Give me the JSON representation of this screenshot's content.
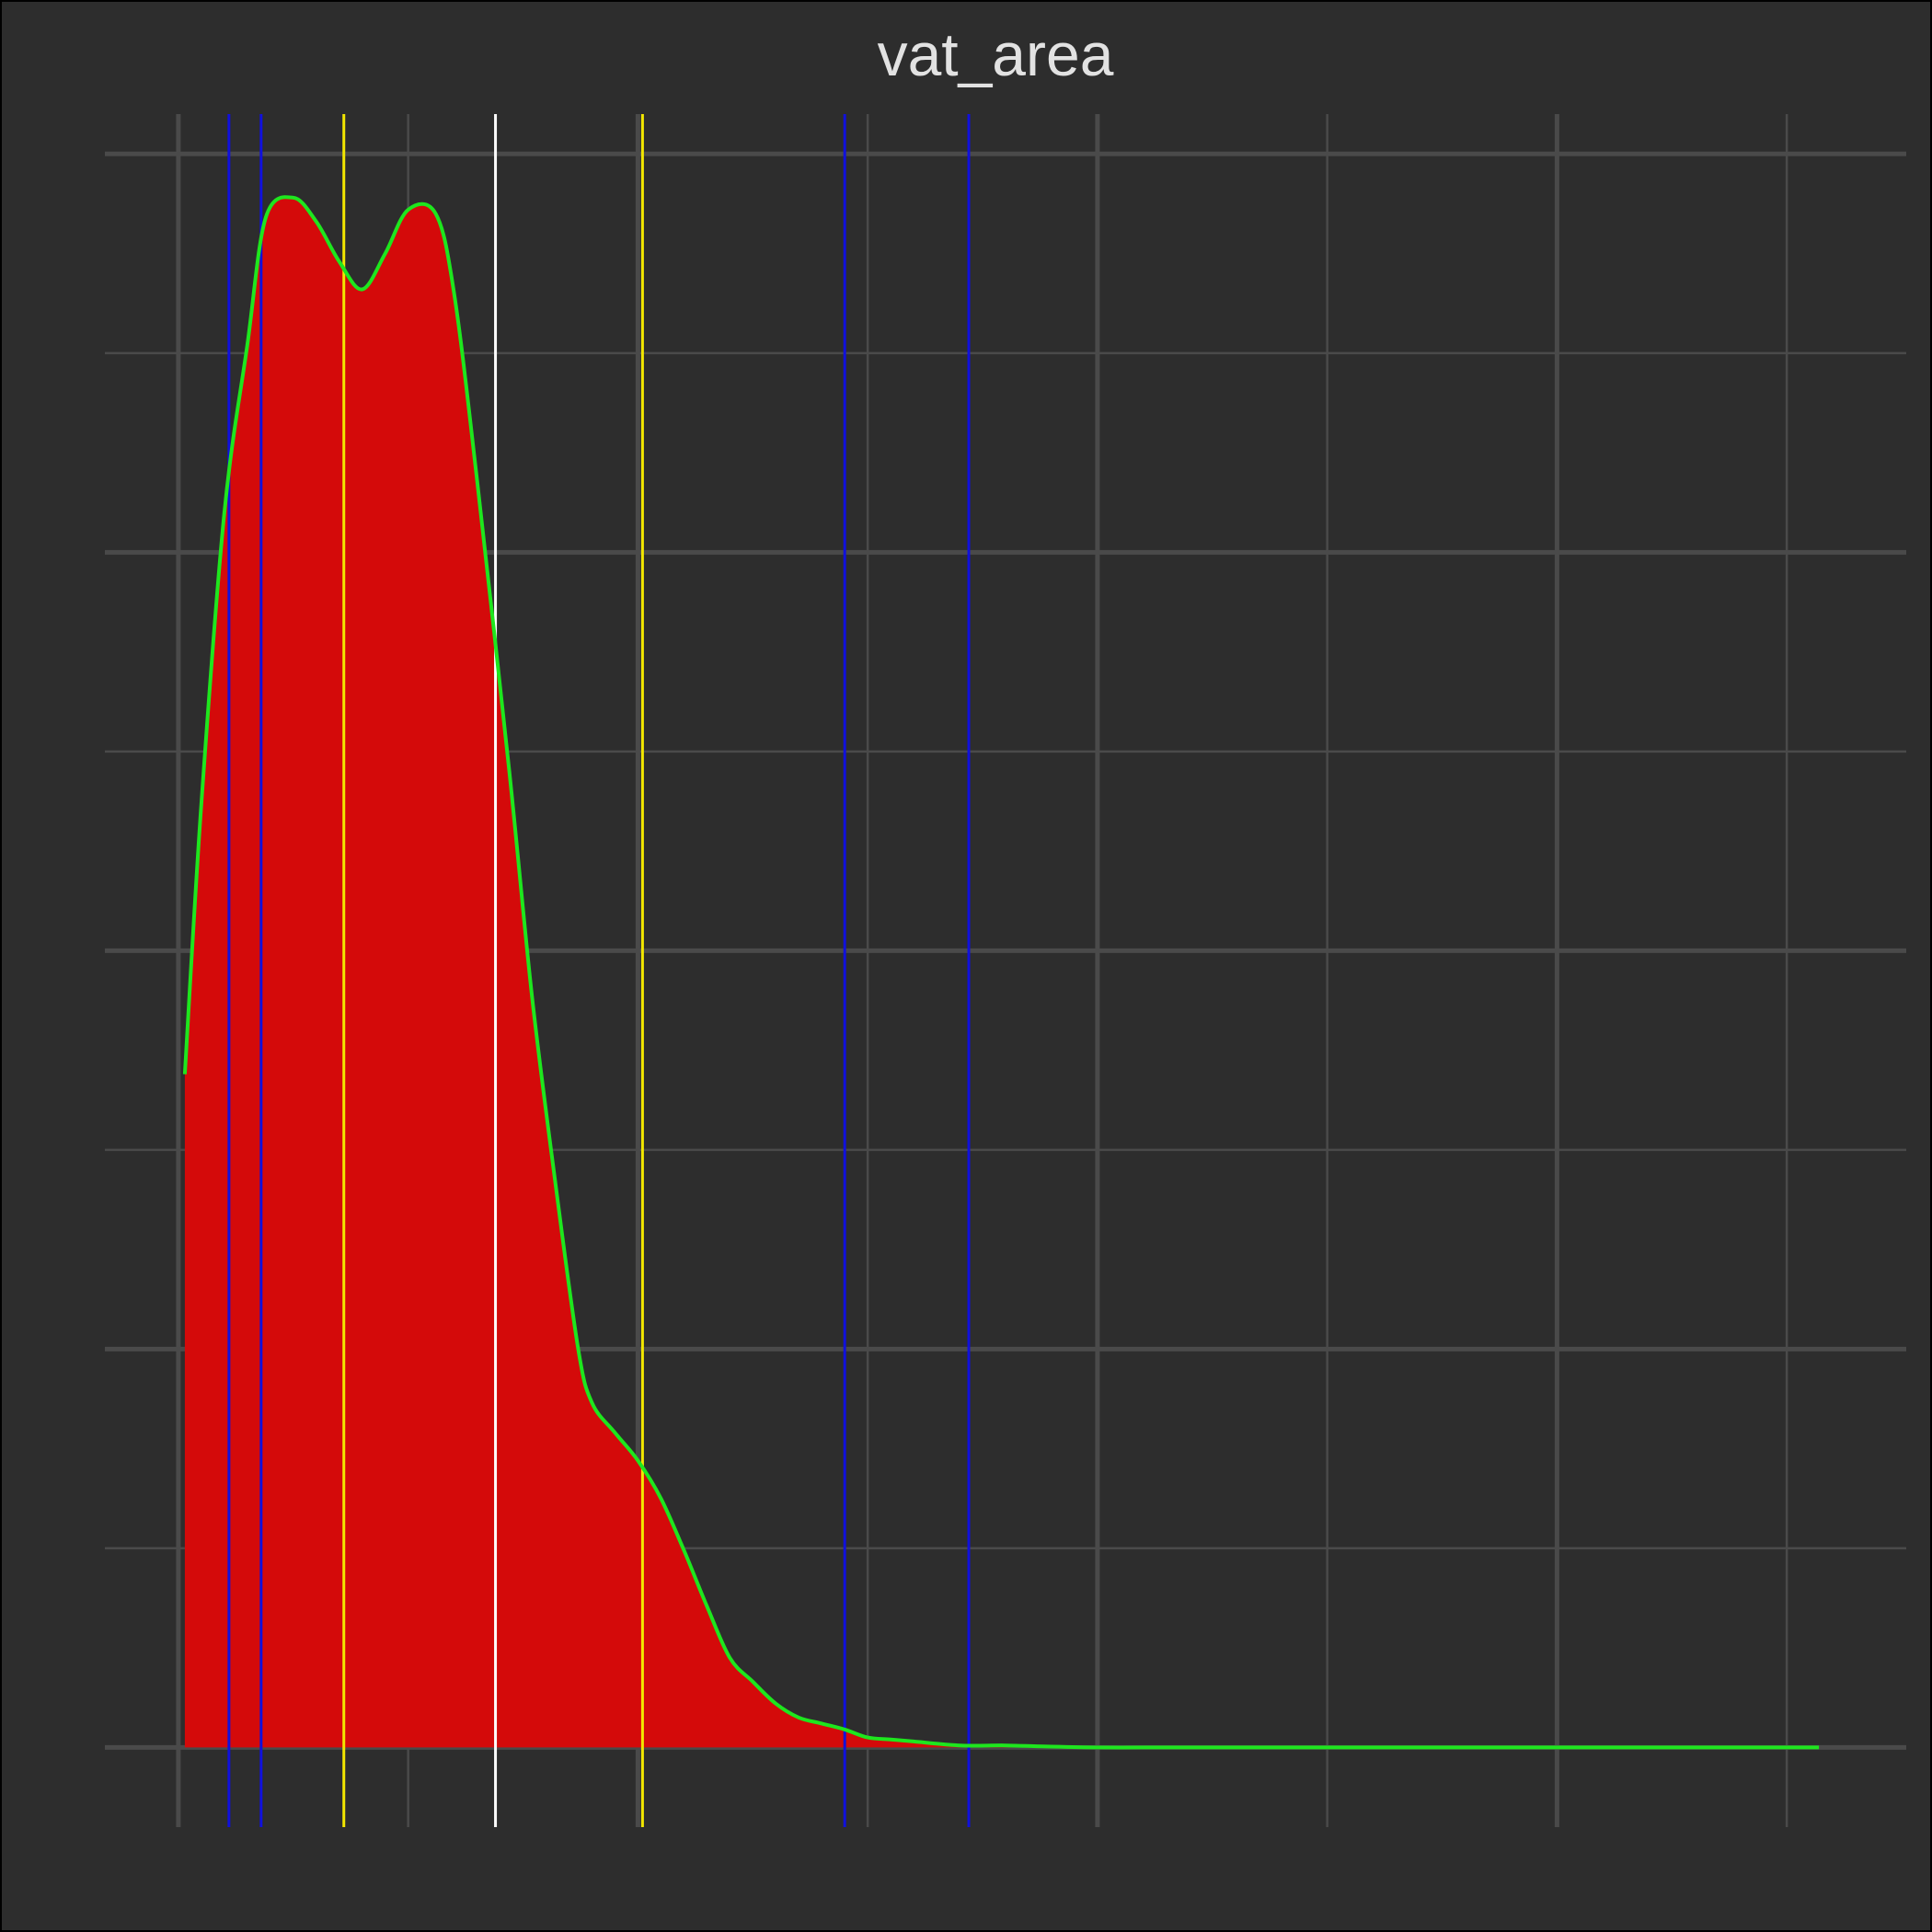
{
  "chart_data": {
    "type": "area",
    "title": "vat_area",
    "xlabel": "",
    "ylabel": "",
    "xlim": [
      -0.16,
      3.76
    ],
    "ylim": [
      -0.02,
      0.41
    ],
    "grid": true,
    "legend": "none",
    "x_gridlines_major": [
      0,
      1,
      2,
      3
    ],
    "x_gridlines_minor": [
      0.5,
      1.5,
      2.5,
      3.5
    ],
    "y_gridlines_major": [
      0,
      0.1,
      0.2,
      0.3,
      0.4
    ],
    "y_gridlines_minor": [
      0.05,
      0.15,
      0.25,
      0.35
    ],
    "series": [
      {
        "kind": "density",
        "fill": "#d40a0a",
        "stroke": "#1ee61e",
        "x": [
          0.014,
          0.05,
          0.1,
          0.15,
          0.19,
          0.25,
          0.3,
          0.35,
          0.4,
          0.45,
          0.5,
          0.56,
          0.6,
          0.65,
          0.72,
          0.77,
          0.82,
          0.87,
          0.9,
          0.95,
          1.0,
          1.05,
          1.1,
          1.15,
          1.2,
          1.25,
          1.3,
          1.35,
          1.4,
          1.45,
          1.5,
          1.55,
          1.6,
          1.7,
          1.8,
          1.9,
          2.0,
          2.1,
          2.2,
          2.3,
          2.4,
          2.5,
          2.6,
          2.7,
          2.8,
          2.9,
          3.0,
          3.1,
          3.2,
          3.3,
          3.4,
          3.5,
          3.57
        ],
        "y": [
          0.169,
          0.237,
          0.31,
          0.352,
          0.384,
          0.389,
          0.383,
          0.373,
          0.366,
          0.375,
          0.386,
          0.385,
          0.365,
          0.318,
          0.245,
          0.188,
          0.142,
          0.1,
          0.0865,
          0.079,
          0.072,
          0.0625,
          0.0495,
          0.0355,
          0.0225,
          0.0165,
          0.011,
          0.0075,
          0.006,
          0.0045,
          0.0025,
          0.002,
          0.0015,
          0.0005,
          0.0005,
          0.0002,
          0.0,
          0.0,
          0.0,
          0.0,
          0.0,
          0.0,
          0.0,
          0.0,
          0.0,
          0.0,
          0.0,
          0.0,
          0.0,
          0.0,
          0.0,
          0.0,
          0.0
        ]
      }
    ],
    "vlines": [
      {
        "x": 0.11,
        "color": "#1010dd"
      },
      {
        "x": 0.18,
        "color": "#1010dd"
      },
      {
        "x": 0.36,
        "color": "#f2e600"
      },
      {
        "x": 0.69,
        "color": "#ffffff"
      },
      {
        "x": 1.01,
        "color": "#f2e600"
      },
      {
        "x": 1.45,
        "color": "#1010dd"
      },
      {
        "x": 1.72,
        "color": "#1010dd"
      }
    ],
    "colors": {
      "background": "#2d2d2d",
      "grid": "#4a4a4a",
      "title": "#e2e2e2"
    }
  }
}
